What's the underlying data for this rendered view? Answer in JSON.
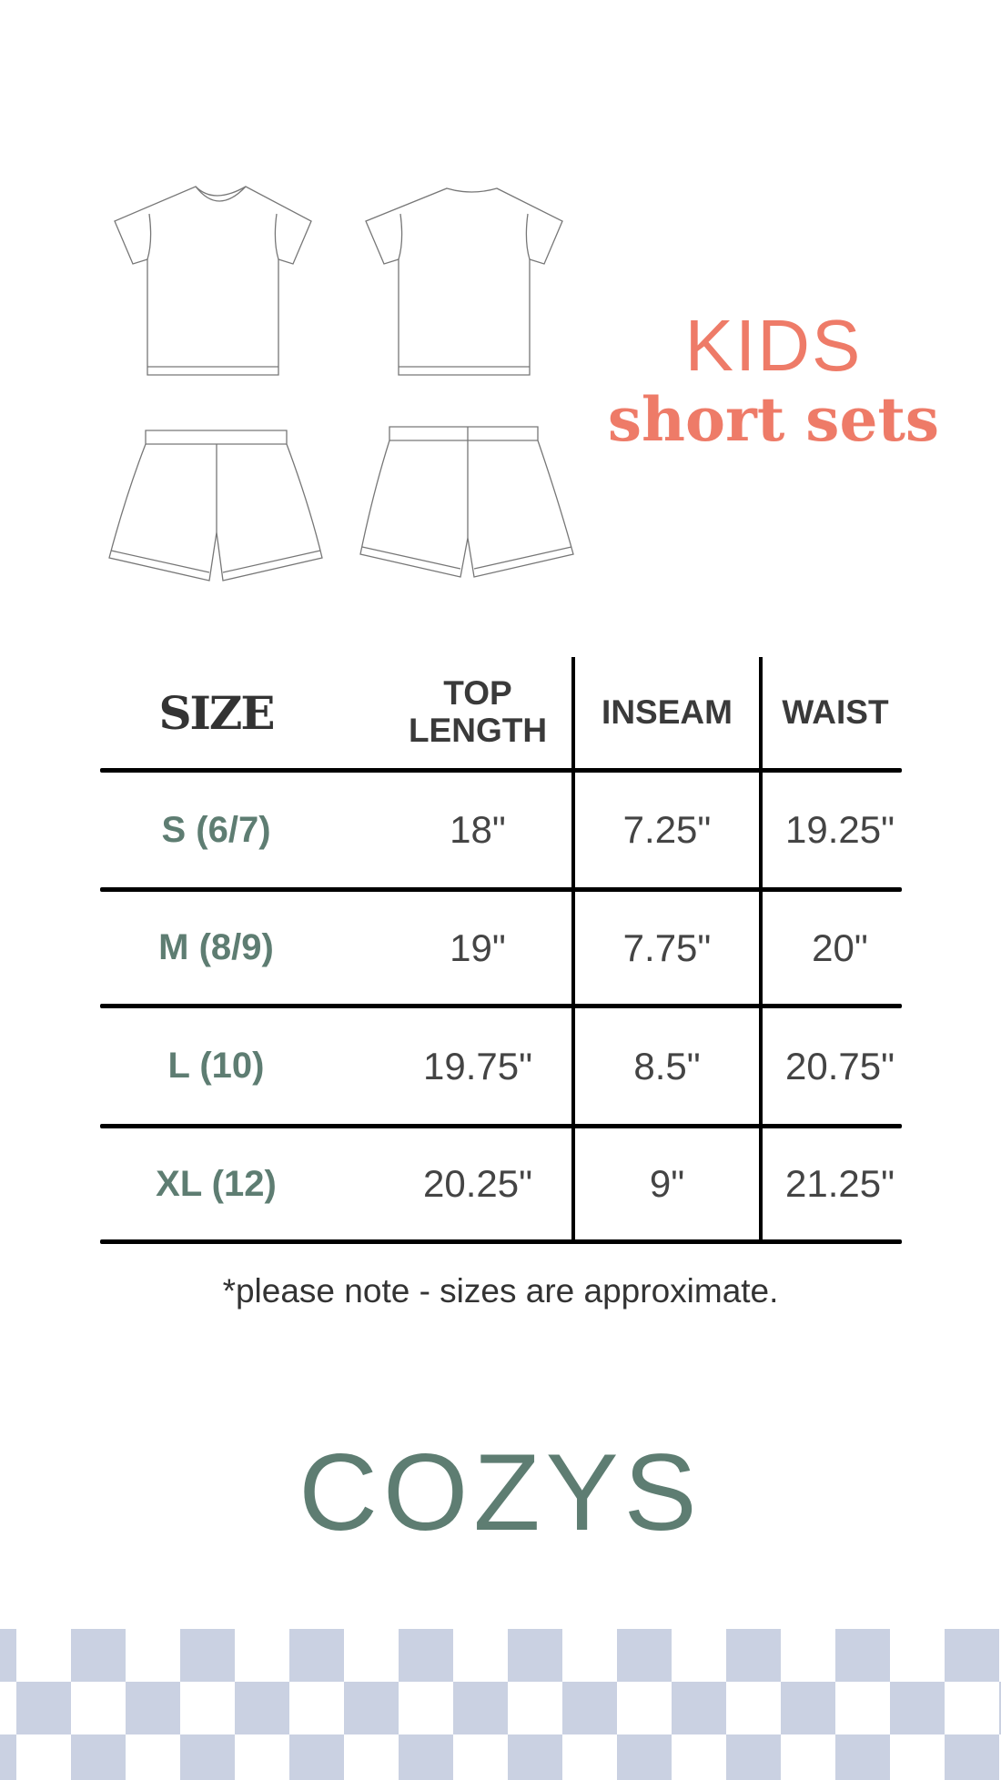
{
  "title": {
    "line1": "KIDS",
    "line2": "short sets"
  },
  "table": {
    "headers": [
      "SIZE",
      "TOP LENGTH",
      "INSEAM",
      "WAIST"
    ],
    "rows": [
      {
        "size": "S (6/7)",
        "top_length": "18\"",
        "inseam": "7.25\"",
        "waist": "19.25\""
      },
      {
        "size": "M (8/9)",
        "top_length": "19\"",
        "inseam": "7.75\"",
        "waist": "20\""
      },
      {
        "size": "L (10)",
        "top_length": "19.75\"",
        "inseam": "8.5\"",
        "waist": "20.75\""
      },
      {
        "size": "XL (12)",
        "top_length": "20.25\"",
        "inseam": "9\"",
        "waist": "21.25\""
      }
    ]
  },
  "note": "*please note - sizes are approximate.",
  "brand": "COZYS",
  "colors": {
    "accent": "#ee7b68",
    "brand": "#5e7d72",
    "checker": "#cad1e2"
  },
  "illustrations": [
    "tshirt-front",
    "tshirt-back",
    "shorts-front",
    "shorts-back"
  ]
}
